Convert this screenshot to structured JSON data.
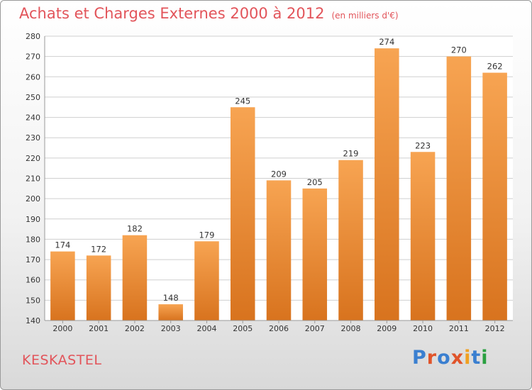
{
  "title": "Achats et Charges Externes 2000 à 2012",
  "unit": "(en milliers d'€)",
  "commune": "KESKASTEL",
  "logo": {
    "text": "Proxiti",
    "letter_colors": [
      "#3a7fd0",
      "#e0542a",
      "#3a7fd0",
      "#e0542a",
      "#f0a020",
      "#3a7fd0",
      "#2aa040"
    ]
  },
  "chart_data": {
    "type": "bar",
    "categories": [
      "2000",
      "2001",
      "2002",
      "2003",
      "2004",
      "2005",
      "2006",
      "2007",
      "2008",
      "2009",
      "2010",
      "2011",
      "2012"
    ],
    "values": [
      174,
      172,
      182,
      148,
      179,
      245,
      209,
      205,
      219,
      274,
      223,
      270,
      262
    ],
    "title": "Achats et Charges Externes 2000 à 2012",
    "xlabel": "",
    "ylabel": "",
    "ylim": [
      140,
      280
    ],
    "yticks": [
      140,
      150,
      160,
      170,
      180,
      190,
      200,
      210,
      220,
      230,
      240,
      250,
      260,
      270,
      280
    ],
    "grid": true,
    "bar_color": "#f08a2e"
  }
}
